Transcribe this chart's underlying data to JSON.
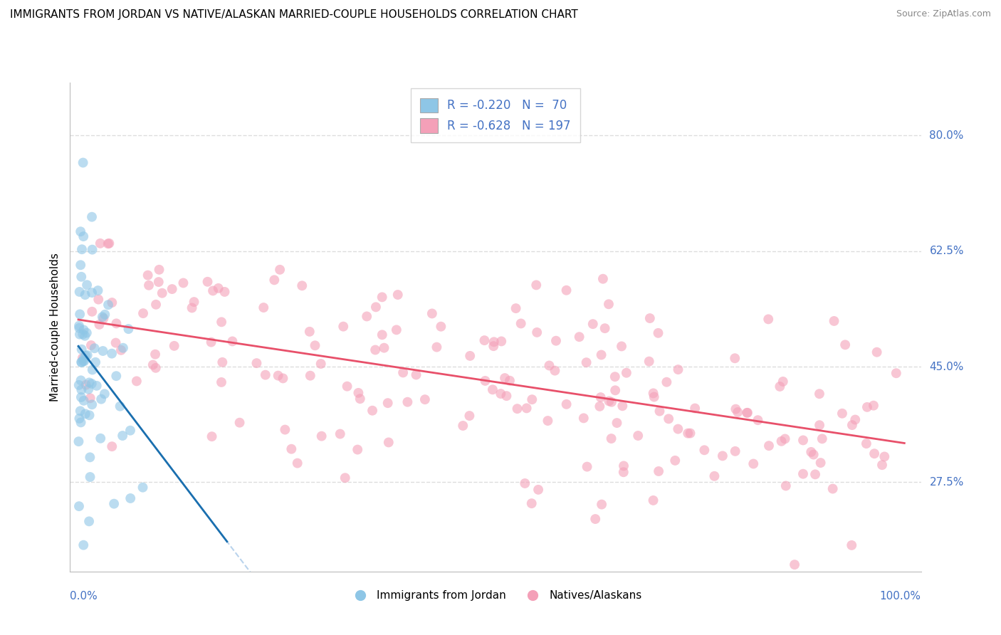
{
  "title": "IMMIGRANTS FROM JORDAN VS NATIVE/ALASKAN MARRIED-COUPLE HOUSEHOLDS CORRELATION CHART",
  "source": "Source: ZipAtlas.com",
  "ylabel": "Married-couple Households",
  "ytick_values": [
    27.5,
    45.0,
    62.5,
    80.0
  ],
  "legend_label1": "Immigrants from Jordan",
  "legend_label2": "Natives/Alaskans",
  "R1": -0.22,
  "N1": 70,
  "R2": -0.628,
  "N2": 197,
  "color_blue": "#8ec6e6",
  "color_pink": "#f4a0b8",
  "color_blue_line": "#1a6faf",
  "color_blue_dash": "#a8c8e8",
  "color_pink_line": "#e8506a",
  "axis_label_color": "#4472c4",
  "background_color": "#ffffff",
  "grid_color": "#dddddd",
  "title_fontsize": 11,
  "source_fontsize": 9,
  "legend_fontsize": 12,
  "axis_fontsize": 11,
  "seed": 42,
  "xlim": [
    -1,
    102
  ],
  "ylim": [
    14,
    88
  ]
}
